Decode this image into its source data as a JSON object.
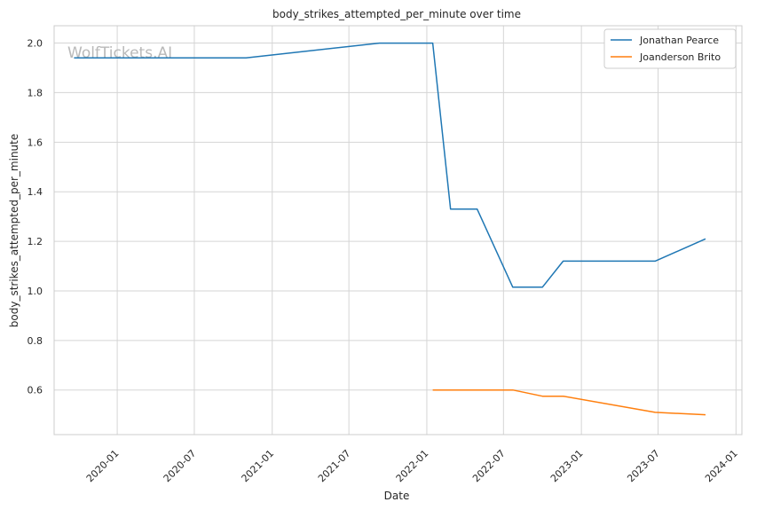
{
  "watermark": "WolfTickets.AI",
  "chart_data": {
    "type": "line",
    "title": "body_strikes_attempted_per_minute over time",
    "xlabel": "Date",
    "ylabel": "body_strikes_attempted_per_minute",
    "x_ticks": [
      "2020-01",
      "2020-07",
      "2021-01",
      "2021-07",
      "2022-01",
      "2022-07",
      "2023-01",
      "2023-07",
      "2024-01"
    ],
    "y_ticks": [
      "0.6",
      "0.8",
      "1.0",
      "1.2",
      "1.4",
      "1.6",
      "1.8",
      "2.0"
    ],
    "xlim": [
      "2019-08-05",
      "2024-01-15"
    ],
    "ylim": [
      0.42,
      2.07
    ],
    "grid": true,
    "legend_position": "top-right",
    "series": [
      {
        "name": "Jonathan Pearce",
        "color": "#1f77b4",
        "x": [
          "2019-09-21",
          "2020-10-31",
          "2021-09-11",
          "2022-01-15",
          "2022-02-26",
          "2022-04-30",
          "2022-07-23",
          "2022-10-01",
          "2022-11-19",
          "2023-06-24",
          "2023-10-21"
        ],
        "y": [
          1.94,
          1.94,
          2.0,
          2.0,
          1.33,
          1.33,
          1.015,
          1.015,
          1.12,
          1.12,
          1.21
        ]
      },
      {
        "name": "Joanderson Brito",
        "color": "#ff7f0e",
        "x": [
          "2022-01-15",
          "2022-07-23",
          "2022-10-01",
          "2022-11-19",
          "2023-06-24",
          "2023-10-21"
        ],
        "y": [
          0.6,
          0.6,
          0.575,
          0.575,
          0.51,
          0.5
        ]
      }
    ]
  }
}
